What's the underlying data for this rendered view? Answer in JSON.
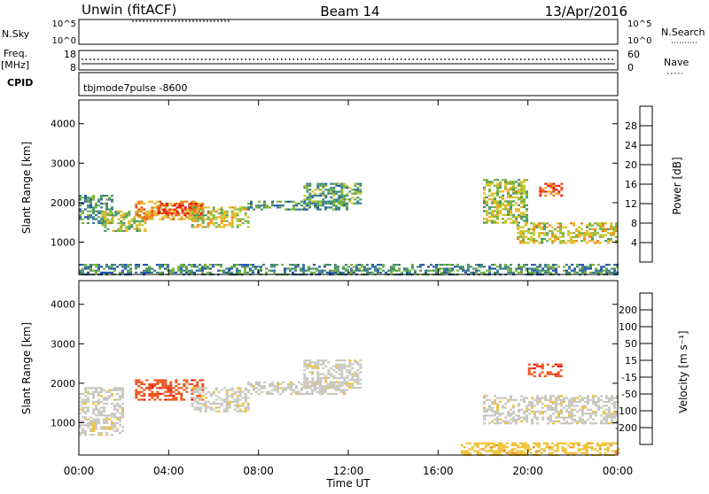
{
  "header": {
    "title_left": "Unwin (fitACF)",
    "title_center": "Beam 14",
    "title_right": "13/Apr/2016"
  },
  "top_panels": {
    "nsky": {
      "label": "N.Sky",
      "ticks_left": [
        "10^5",
        "10^0"
      ],
      "ticks_right": [
        "10^5",
        "10^0"
      ],
      "right_label": "N.Search"
    },
    "freq": {
      "label_line1": "Freq.",
      "label_line2": "[MHz]",
      "ticks_left": [
        "18",
        "8"
      ],
      "ticks_right": [
        "60",
        "0"
      ],
      "right_label": "Nave"
    },
    "cpid": {
      "label": "CPID",
      "text": "tbjmode7pulse -8600"
    }
  },
  "chart_data": [
    {
      "type": "heatmap",
      "name": "power",
      "ylabel": "Slant Range [km]",
      "xlabel": "",
      "xlim": [
        0,
        24
      ],
      "ylim": [
        180,
        4600
      ],
      "x_ticks": [
        "00:00",
        "04:00",
        "08:00",
        "12:00",
        "16:00",
        "20:00",
        "00:00"
      ],
      "y_ticks": [
        1000,
        2000,
        3000,
        4000
      ],
      "colorbar": {
        "label": "Power [dB]",
        "range": [
          0,
          32
        ],
        "ticks": [
          4,
          8,
          12,
          16,
          20,
          24,
          28
        ],
        "colors": [
          "#1e2ed8",
          "#2456b0",
          "#3a7c8c",
          "#4a9664",
          "#7ab53c",
          "#c8c830",
          "#f2b020",
          "#f08018",
          "#f04a12",
          "#e41010"
        ]
      },
      "bands": [
        {
          "t0": 0.0,
          "t1": 1.5,
          "r0": 1500,
          "r1": 2200,
          "level": 10
        },
        {
          "t0": 1.0,
          "t1": 3.0,
          "r0": 1300,
          "r1": 1800,
          "level": 16
        },
        {
          "t0": 2.5,
          "t1": 5.5,
          "r0": 1600,
          "r1": 2050,
          "level": 22
        },
        {
          "t0": 3.5,
          "t1": 5.5,
          "r0": 1700,
          "r1": 2000,
          "level": 28
        },
        {
          "t0": 5.0,
          "t1": 7.5,
          "r0": 1400,
          "r1": 1900,
          "level": 18
        },
        {
          "t0": 7.5,
          "t1": 12.0,
          "r0": 1850,
          "r1": 2050,
          "level": 10
        },
        {
          "t0": 10.0,
          "t1": 12.5,
          "r0": 2000,
          "r1": 2500,
          "level": 12
        },
        {
          "t0": 18.0,
          "t1": 20.0,
          "r0": 1500,
          "r1": 2600,
          "level": 16
        },
        {
          "t0": 19.5,
          "t1": 24.0,
          "r0": 1000,
          "r1": 1500,
          "level": 18
        },
        {
          "t0": 20.5,
          "t1": 21.5,
          "r0": 2200,
          "r1": 2500,
          "level": 26
        },
        {
          "t0": 0.0,
          "t1": 24.0,
          "r0": 200,
          "r1": 450,
          "level": 10
        }
      ]
    },
    {
      "type": "heatmap",
      "name": "velocity",
      "ylabel": "Slant Range [km]",
      "xlabel": "Time UT",
      "xlim": [
        0,
        24
      ],
      "ylim": [
        180,
        4600
      ],
      "x_ticks": [
        "00:00",
        "04:00",
        "08:00",
        "12:00",
        "16:00",
        "20:00",
        "00:00"
      ],
      "y_ticks": [
        1000,
        2000,
        3000,
        4000
      ],
      "colorbar": {
        "label": "Velocity [m s⁻¹]",
        "tick_labels": [
          "200",
          "100",
          "50",
          "15",
          "-15",
          "-50",
          "-100",
          "-200"
        ],
        "colors": [
          "#1e3cc8",
          "#3a64a0",
          "#4c8c5c",
          "#8cc84c",
          "#c8c8c0",
          "#f0c030",
          "#f08c20",
          "#f05018",
          "#e01010"
        ]
      },
      "bands": [
        {
          "t0": 0.0,
          "t1": 2.0,
          "r0": 700,
          "r1": 1900,
          "level": -15
        },
        {
          "t0": 2.5,
          "t1": 5.5,
          "r0": 1600,
          "r1": 2100,
          "level": -200
        },
        {
          "t0": 5.0,
          "t1": 7.5,
          "r0": 1300,
          "r1": 1900,
          "level": -15
        },
        {
          "t0": 7.5,
          "t1": 12.0,
          "r0": 1750,
          "r1": 2050,
          "level": -15
        },
        {
          "t0": 10.0,
          "t1": 12.5,
          "r0": 1900,
          "r1": 2600,
          "level": -15
        },
        {
          "t0": 18.0,
          "t1": 24.0,
          "r0": 1000,
          "r1": 1700,
          "level": -15
        },
        {
          "t0": 20.0,
          "t1": 21.5,
          "r0": 2200,
          "r1": 2500,
          "level": -200
        },
        {
          "t0": 17.0,
          "t1": 24.0,
          "r0": 200,
          "r1": 500,
          "level": -50
        }
      ]
    }
  ]
}
